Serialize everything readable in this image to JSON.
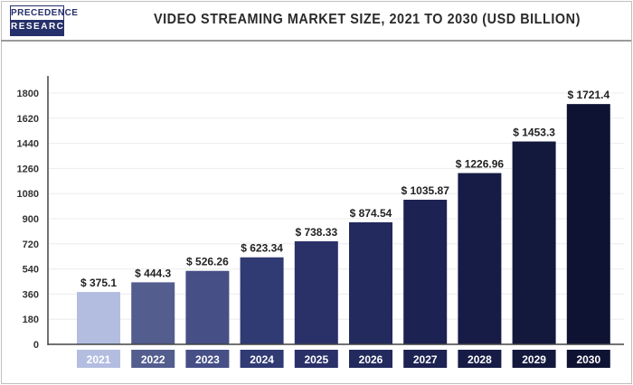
{
  "logo": {
    "line1": "PRECEDENCE",
    "line2": "RESEARCH"
  },
  "chart_data": {
    "type": "bar",
    "title": "VIDEO STREAMING MARKET SIZE, 2021 TO 2030 (USD BILLION)",
    "xlabel": "",
    "ylabel": "",
    "categories": [
      "2021",
      "2022",
      "2023",
      "2024",
      "2025",
      "2026",
      "2027",
      "2028",
      "2029",
      "2030"
    ],
    "values": [
      375.1,
      444.3,
      526.26,
      623.34,
      738.33,
      874.54,
      1035.87,
      1226.96,
      1453.3,
      1721.4
    ],
    "data_labels": [
      "$ 375.1",
      "$ 444.3",
      "$ 526.26",
      "$ 623.34",
      "$ 738.33",
      "$ 874.54",
      "$ 1035.87",
      "$ 1226.96",
      "$ 1453.3",
      "$ 1721.4"
    ],
    "ylim": [
      0,
      1800
    ],
    "yticks": [
      0,
      180,
      360,
      540,
      720,
      900,
      1080,
      1260,
      1440,
      1620,
      1800
    ],
    "grid": true,
    "legend": "none",
    "colors": [
      "#b3bde0",
      "#535d8e",
      "#464f86",
      "#303a73",
      "#2a3169",
      "#232a5d",
      "#1c2251",
      "#171c46",
      "#13183d",
      "#0f1333"
    ]
  }
}
